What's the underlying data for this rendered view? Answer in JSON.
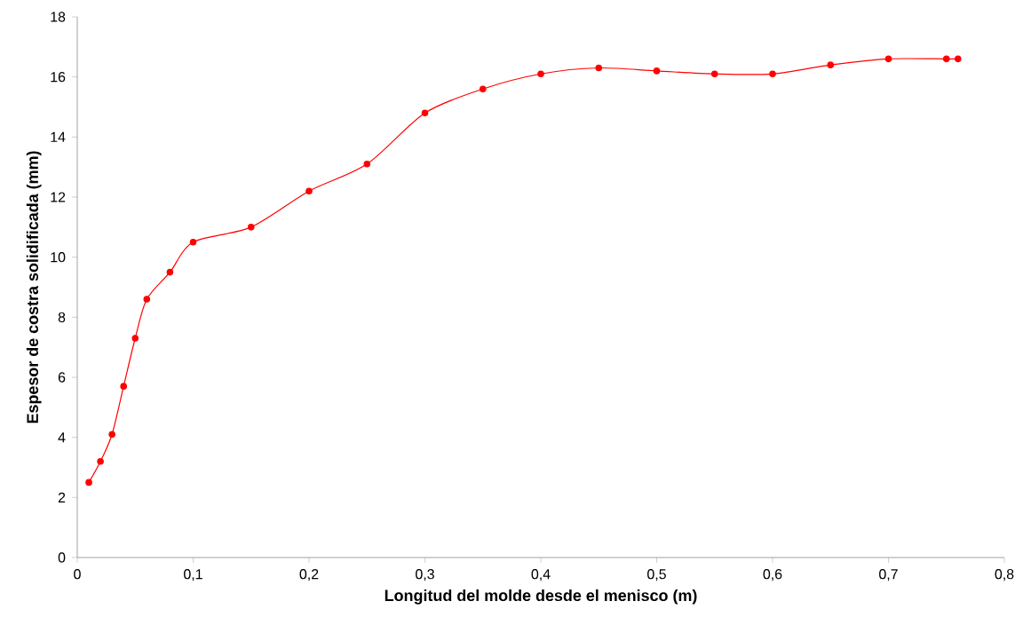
{
  "chart_data": {
    "type": "line",
    "xlabel": "Longitud del molde desde el menisco (m)",
    "ylabel": "Espesor de costra solidificada (mm)",
    "x": [
      0.01,
      0.02,
      0.03,
      0.04,
      0.05,
      0.06,
      0.08,
      0.1,
      0.15,
      0.2,
      0.25,
      0.3,
      0.35,
      0.4,
      0.45,
      0.5,
      0.55,
      0.6,
      0.65,
      0.7,
      0.75,
      0.76
    ],
    "series": [
      {
        "color": "#ff0000",
        "values": [
          2.5,
          3.2,
          4.1,
          5.7,
          7.3,
          8.6,
          9.5,
          10.5,
          11.0,
          12.2,
          13.1,
          14.8,
          15.6,
          16.1,
          16.3,
          16.2,
          16.1,
          16.1,
          16.4,
          16.6,
          16.6,
          16.6
        ]
      }
    ],
    "xlim": [
      0,
      0.8
    ],
    "ylim": [
      0,
      18
    ],
    "xticks": [
      {
        "value": 0,
        "label": "0"
      },
      {
        "value": 0.1,
        "label": "0,1"
      },
      {
        "value": 0.2,
        "label": "0,2"
      },
      {
        "value": 0.3,
        "label": "0,3"
      },
      {
        "value": 0.4,
        "label": "0,4"
      },
      {
        "value": 0.5,
        "label": "0,5"
      },
      {
        "value": 0.6,
        "label": "0,6"
      },
      {
        "value": 0.7,
        "label": "0,7"
      },
      {
        "value": 0.8,
        "label": "0,8"
      }
    ],
    "yticks": [
      0,
      2,
      4,
      6,
      8,
      10,
      12,
      14,
      16,
      18
    ],
    "marker": "circle",
    "line_style": "solid",
    "grid": false,
    "legend": false
  }
}
